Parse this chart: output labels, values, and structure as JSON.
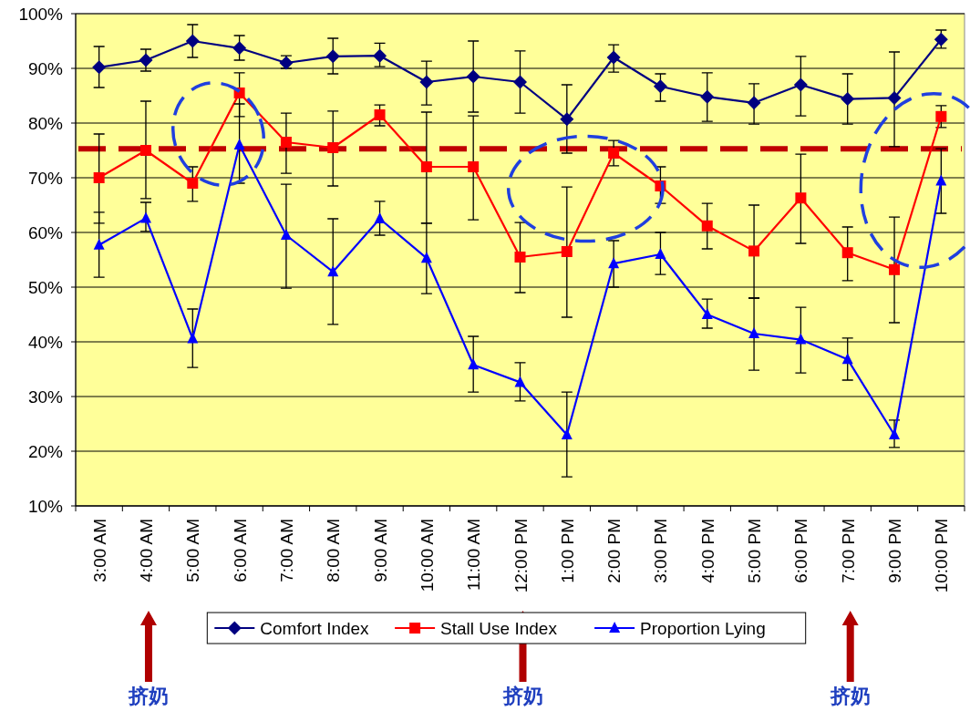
{
  "chart_data": {
    "type": "line",
    "categories": [
      "3:00 AM",
      "4:00 AM",
      "5:00 AM",
      "6:00 AM",
      "7:00 AM",
      "8:00 AM",
      "9:00 AM",
      "10:00 AM",
      "11:00 AM",
      "12:00 PM",
      "1:00 PM",
      "2:00 PM",
      "3:00 PM",
      "4:00 PM",
      "5:00 PM",
      "6:00 PM",
      "7:00 PM",
      "9:00 PM",
      "10:00 PM"
    ],
    "series": [
      {
        "name": "Comfort Index",
        "color": "#000080",
        "marker": "diamond",
        "values": [
          90.2,
          91.5,
          95,
          93.7,
          91,
          92.2,
          92.3,
          87.5,
          88.5,
          87.5,
          80.7,
          92,
          86.7,
          84.8,
          83.7,
          87,
          84.4,
          84.6,
          95.3
        ],
        "errors": [
          [
            86.5,
            94
          ],
          [
            89.5,
            93.5
          ],
          [
            92,
            98
          ],
          [
            91.5,
            96
          ],
          [
            90,
            92.3
          ],
          [
            89,
            95.5
          ],
          [
            90.3,
            94.6
          ],
          [
            83.3,
            91.3
          ],
          [
            82,
            95
          ],
          [
            81.8,
            93.2
          ],
          [
            74.5,
            87
          ],
          [
            89.3,
            94.3
          ],
          [
            84,
            89
          ],
          [
            80.3,
            89.2
          ],
          [
            79.8,
            87.2
          ],
          [
            81.3,
            92.2
          ],
          [
            79.8,
            89
          ],
          [
            75.7,
            93
          ],
          [
            93.7,
            97
          ]
        ]
      },
      {
        "name": "Stall Use Index",
        "color": "#ff0000",
        "marker": "square",
        "values": [
          70,
          75,
          69,
          85.5,
          76.5,
          75.5,
          81.5,
          72,
          72,
          55.5,
          56.5,
          74.5,
          68.5,
          61.2,
          56.6,
          66.3,
          56.3,
          53.2,
          81.2
        ],
        "errors": [
          [
            61.7,
            78
          ],
          [
            66.2,
            84
          ],
          [
            65.7,
            72
          ],
          [
            81.2,
            89.2
          ],
          [
            70.8,
            81.8
          ],
          [
            68.5,
            82.2
          ],
          [
            79.5,
            83.3
          ],
          [
            61.7,
            82
          ],
          [
            62.3,
            81.3
          ],
          [
            49,
            61.8
          ],
          [
            44.5,
            68.3
          ],
          [
            72.2,
            76.8
          ],
          [
            65.3,
            72
          ],
          [
            57,
            65.3
          ],
          [
            48,
            65
          ],
          [
            58,
            74.3
          ],
          [
            51.2,
            61
          ],
          [
            43.5,
            62.8
          ],
          [
            79.2,
            83.2
          ]
        ]
      },
      {
        "name": "Proportion Lying",
        "color": "#0000ff",
        "marker": "triangle",
        "values": [
          57.7,
          62.6,
          40.6,
          76,
          59.5,
          52.8,
          62.5,
          55.3,
          35.8,
          32.6,
          23,
          54.3,
          56,
          45,
          41.5,
          40.4,
          36.8,
          23,
          69.4
        ],
        "errors": [
          [
            51.8,
            63.7
          ],
          [
            60.2,
            65.5
          ],
          [
            35.3,
            46
          ],
          [
            69,
            83.5
          ],
          [
            49.8,
            68.8
          ],
          [
            43.2,
            62.5
          ],
          [
            59.5,
            65.7
          ],
          [
            48.8,
            61.7
          ],
          [
            30.8,
            41
          ],
          [
            29.2,
            36.2
          ],
          [
            15.3,
            30.8
          ],
          [
            50,
            58.5
          ],
          [
            52.3,
            60
          ],
          [
            42.5,
            47.8
          ],
          [
            34.8,
            48
          ],
          [
            34.3,
            46.3
          ],
          [
            33,
            40.7
          ],
          [
            20.7,
            25.7
          ],
          [
            63.5,
            75.3
          ]
        ]
      }
    ],
    "ylim": [
      10,
      100
    ],
    "yticks": [
      {
        "value": 10,
        "label": "10%"
      },
      {
        "value": 20,
        "label": "20%"
      },
      {
        "value": 30,
        "label": "30%"
      },
      {
        "value": 40,
        "label": "40%"
      },
      {
        "value": 50,
        "label": "50%"
      },
      {
        "value": 60,
        "label": "60%"
      },
      {
        "value": 70,
        "label": "70%"
      },
      {
        "value": 80,
        "label": "80%"
      },
      {
        "value": 90,
        "label": "90%"
      },
      {
        "value": 100,
        "label": "100%"
      }
    ],
    "grid": "y",
    "legend": "bottom",
    "ref_lines": [
      {
        "axis": "y",
        "value": 75.3,
        "color": "#c00000",
        "line_style": "dashed"
      }
    ],
    "annotations": [
      "挤奶",
      "挤奶",
      "挤奶"
    ]
  }
}
